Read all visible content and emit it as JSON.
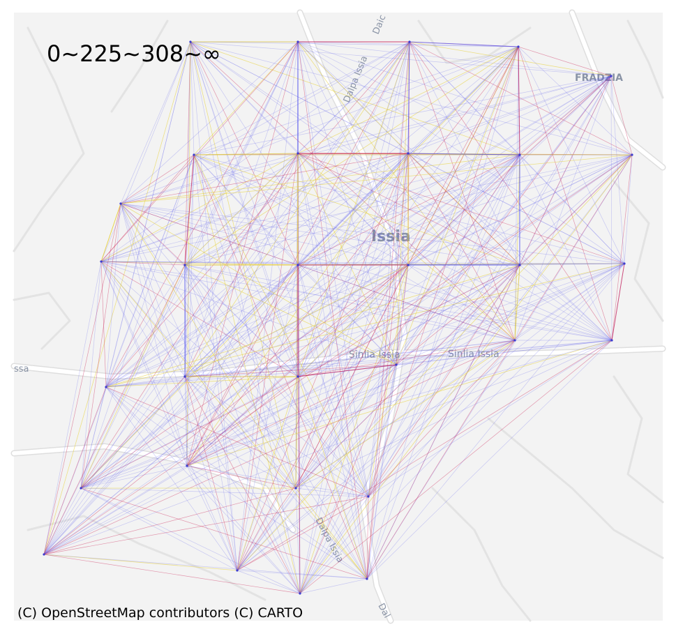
{
  "legend": {
    "text": "0~225~308~∞"
  },
  "attribution": "(C) OpenStreetMap contributors (C) CARTO",
  "basemap": {
    "labels": {
      "town": "Issia",
      "frazia": "FRADZIA",
      "road_top": "Dalpa Issia",
      "road_top2": "Daic",
      "road_mid1": "Sinlia Issia",
      "road_mid2": "Sinlia Issia",
      "road_left": "ssa",
      "road_bottom": "Dalpa Issia",
      "road_bottom2": "Dal"
    },
    "colors": {
      "land": "#f2f2f2",
      "road": "#ffffff",
      "road_edge": "#dcdcdc",
      "label": "#8a94a6"
    }
  },
  "network": {
    "colors": {
      "low": "#5555ee",
      "mid": "#cc2255",
      "high": "#e8d23a",
      "node": "#3b3bd0"
    },
    "bins": [
      "0~225",
      "225~308",
      "308~∞"
    ]
  }
}
